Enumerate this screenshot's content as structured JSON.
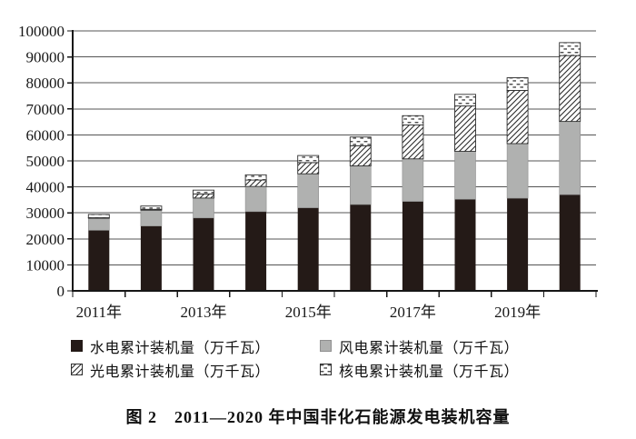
{
  "chart_data": {
    "type": "bar",
    "stacked": true,
    "caption": "图 2　2011—2020 年中国非化石能源发电装机容量",
    "categories": [
      "2011年",
      "2012年",
      "2013年",
      "2014年",
      "2015年",
      "2016年",
      "2017年",
      "2018年",
      "2019年",
      "2020年"
    ],
    "x_axis_labels": [
      {
        "index": 0,
        "label": "2011年"
      },
      {
        "index": 2,
        "label": "2013年"
      },
      {
        "index": 4,
        "label": "2015年"
      },
      {
        "index": 6,
        "label": "2017年"
      },
      {
        "index": 8,
        "label": "2019年"
      }
    ],
    "series": [
      {
        "name": "水电累计装机量（万千瓦）",
        "style": "solid",
        "color": "#241a17",
        "values": [
          23298,
          24947,
          28044,
          30486,
          31954,
          33211,
          34411,
          35226,
          35640,
          37016
        ]
      },
      {
        "name": "风电累计装机量（万千瓦）",
        "style": "solid",
        "color": "#b0b1b0",
        "values": [
          4623,
          6083,
          7652,
          9657,
          13075,
          14864,
          16367,
          18426,
          21005,
          28153
        ]
      },
      {
        "name": "光电累计装机量（万千瓦）",
        "style": "diagonal-hatch",
        "color": "#ffffff",
        "values": [
          212,
          341,
          1589,
          2486,
          4318,
          7742,
          13025,
          17463,
          20468,
          25343
        ]
      },
      {
        "name": "核电累计装机量（万千瓦）",
        "style": "dotted",
        "color": "#ffffff",
        "values": [
          1257,
          1257,
          1466,
          2008,
          2717,
          3364,
          3582,
          4466,
          4874,
          4989
        ]
      }
    ],
    "ylim": [
      0,
      100000
    ],
    "y_ticks": [
      0,
      10000,
      20000,
      30000,
      40000,
      50000,
      60000,
      70000,
      80000,
      90000,
      100000
    ],
    "grid": true,
    "legend_position": "bottom",
    "colors": {
      "hydro_fill": "#241a17",
      "wind_fill": "#b0b1b0",
      "hatch_line": "#2b2b2b",
      "dot_dash": "#3a3a3a",
      "gridline": "#545454",
      "axis": "#161616",
      "pattern_border": "#2f2f2f"
    }
  }
}
